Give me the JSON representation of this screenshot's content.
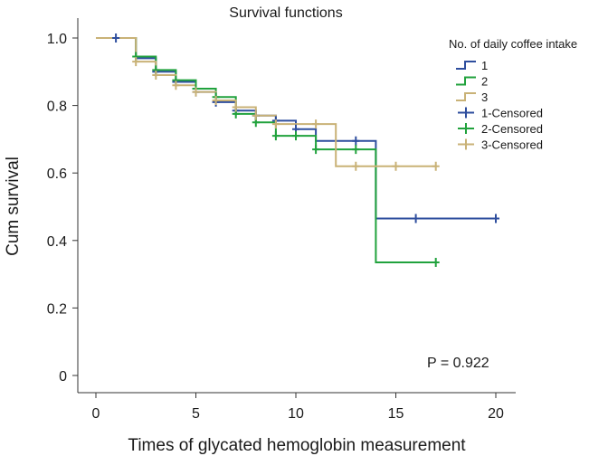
{
  "chart_data": {
    "type": "line",
    "subtype": "kaplan-meier-survival",
    "title": "Survival functions",
    "xlabel": "Times of glycated hemoglobin measurement",
    "ylabel": "Cum survival",
    "xlim": [
      0,
      20
    ],
    "ylim": [
      0,
      1.0
    ],
    "x_ticks": [
      0,
      5,
      10,
      15,
      20
    ],
    "x_tick_labels": [
      "0",
      "5",
      "10",
      "15",
      "20"
    ],
    "y_ticks": [
      0,
      0.2,
      0.4,
      0.6,
      0.8,
      1.0
    ],
    "y_tick_labels": [
      "0",
      "0.2",
      "0.4",
      "0.6",
      "0.8",
      "1.0"
    ],
    "grid": false,
    "legend": {
      "title": "No. of daily coffee intake",
      "position": "top-right",
      "entries": [
        "1",
        "2",
        "3",
        "1-Censored",
        "2-Censored",
        "3-Censored"
      ]
    },
    "annotation": "P = 0.922",
    "series": [
      {
        "name": "1",
        "censored_name": "1-Censored",
        "color": "#2e4e9e",
        "steps": [
          [
            0,
            1.0
          ],
          [
            2,
            0.94
          ],
          [
            3,
            0.9
          ],
          [
            4,
            0.87
          ],
          [
            5,
            0.84
          ],
          [
            6,
            0.81
          ],
          [
            7,
            0.785
          ],
          [
            8,
            0.77
          ],
          [
            9,
            0.755
          ],
          [
            10,
            0.73
          ],
          [
            11,
            0.695
          ],
          [
            14,
            0.465
          ],
          [
            20,
            0.465
          ]
        ],
        "censored": [
          [
            1,
            1.0
          ],
          [
            3,
            0.9
          ],
          [
            4,
            0.87
          ],
          [
            5,
            0.84
          ],
          [
            6,
            0.81
          ],
          [
            7,
            0.785
          ],
          [
            8,
            0.77
          ],
          [
            9,
            0.755
          ],
          [
            10,
            0.73
          ],
          [
            13,
            0.695
          ],
          [
            16,
            0.465
          ],
          [
            20,
            0.465
          ]
        ]
      },
      {
        "name": "2",
        "censored_name": "2-Censored",
        "color": "#21a23d",
        "steps": [
          [
            0,
            1.0
          ],
          [
            2,
            0.945
          ],
          [
            3,
            0.905
          ],
          [
            4,
            0.875
          ],
          [
            5,
            0.85
          ],
          [
            6,
            0.825
          ],
          [
            7,
            0.775
          ],
          [
            8,
            0.75
          ],
          [
            9,
            0.71
          ],
          [
            11,
            0.67
          ],
          [
            14,
            0.335
          ],
          [
            17,
            0.335
          ]
        ],
        "censored": [
          [
            2,
            0.945
          ],
          [
            3,
            0.905
          ],
          [
            4,
            0.875
          ],
          [
            5,
            0.85
          ],
          [
            6,
            0.825
          ],
          [
            7,
            0.775
          ],
          [
            8,
            0.75
          ],
          [
            9,
            0.71
          ],
          [
            10,
            0.71
          ],
          [
            11,
            0.67
          ],
          [
            13,
            0.67
          ],
          [
            17,
            0.335
          ]
        ]
      },
      {
        "name": "3",
        "censored_name": "3-Censored",
        "color": "#c9b277",
        "steps": [
          [
            0,
            1.0
          ],
          [
            2,
            0.93
          ],
          [
            3,
            0.89
          ],
          [
            4,
            0.86
          ],
          [
            5,
            0.84
          ],
          [
            6,
            0.815
          ],
          [
            7,
            0.795
          ],
          [
            8,
            0.77
          ],
          [
            9,
            0.745
          ],
          [
            12,
            0.62
          ],
          [
            17,
            0.62
          ]
        ],
        "censored": [
          [
            2,
            0.93
          ],
          [
            3,
            0.89
          ],
          [
            4,
            0.86
          ],
          [
            5,
            0.84
          ],
          [
            6,
            0.815
          ],
          [
            7,
            0.795
          ],
          [
            8,
            0.77
          ],
          [
            9,
            0.745
          ],
          [
            11,
            0.745
          ],
          [
            13,
            0.62
          ],
          [
            15,
            0.62
          ],
          [
            17,
            0.62
          ]
        ]
      }
    ]
  }
}
